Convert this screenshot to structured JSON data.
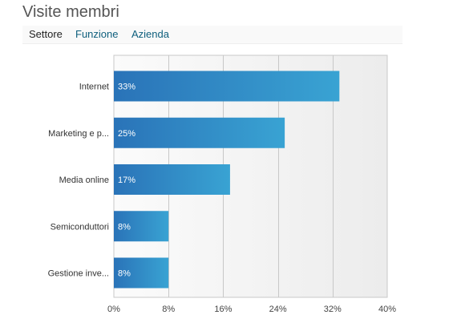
{
  "header": {
    "title": "Visite membri"
  },
  "tabs": [
    {
      "label": "Settore",
      "active": true
    },
    {
      "label": "Funzione",
      "active": false
    },
    {
      "label": "Azienda",
      "active": false
    }
  ],
  "colors": {
    "bar_dark": "#2a73b8",
    "bar_light": "#39a3d3",
    "plot_bg_light": "#fbfbfb",
    "plot_bg_dark": "#ececec",
    "grid": "#c8c8c8",
    "tab_link": "#0e5f7d"
  },
  "chart_data": {
    "type": "bar",
    "orientation": "horizontal",
    "categories": [
      "Internet",
      "Marketing e p...",
      "Media online",
      "Semiconduttori",
      "Gestione inve..."
    ],
    "values": [
      33,
      25,
      17,
      8,
      8
    ],
    "value_labels": [
      "33%",
      "25%",
      "17%",
      "8%",
      "8%"
    ],
    "xlim": [
      0,
      40
    ],
    "xticks": [
      0,
      8,
      16,
      24,
      32,
      40
    ],
    "xtick_labels": [
      "0%",
      "8%",
      "16%",
      "24%",
      "32%",
      "40%"
    ],
    "grid": true,
    "title": "",
    "xlabel": "",
    "ylabel": ""
  }
}
